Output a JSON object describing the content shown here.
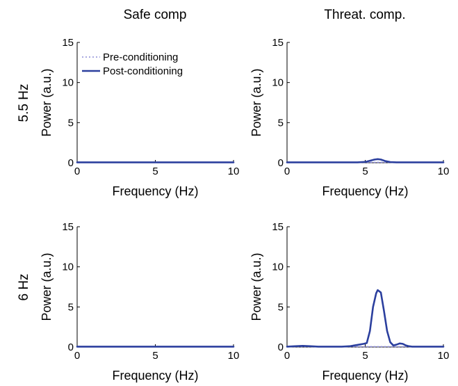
{
  "column_titles": [
    "Safe comp",
    "Threat. comp."
  ],
  "row_labels": [
    "5.5 Hz",
    "6 Hz"
  ],
  "legend": {
    "pre": "Pre-conditioning",
    "post": "Post-conditioning"
  },
  "colors": {
    "pre": "#8c8cd6",
    "post": "#2b3f9e",
    "axis": "#000000"
  },
  "chart_data": [
    {
      "type": "line",
      "row": 0,
      "col": 0,
      "xlabel": "Frequency (Hz)",
      "ylabel": "Power (a.u.)",
      "xlim": [
        0,
        10
      ],
      "ylim": [
        0,
        15
      ],
      "xticks": [
        0,
        5,
        10
      ],
      "yticks": [
        0,
        5,
        10,
        15
      ],
      "grid": false,
      "legend": "top-left",
      "series": [
        {
          "name": "Pre-conditioning",
          "style": "dotted",
          "x": [
            0,
            10
          ],
          "y": [
            0.05,
            0.05
          ]
        },
        {
          "name": "Post-conditioning",
          "style": "solid",
          "x": [
            0,
            10
          ],
          "y": [
            0.05,
            0.05
          ]
        }
      ]
    },
    {
      "type": "line",
      "row": 0,
      "col": 1,
      "xlabel": "Frequency (Hz)",
      "ylabel": "Power (a.u.)",
      "xlim": [
        0,
        10
      ],
      "ylim": [
        0,
        15
      ],
      "xticks": [
        0,
        5,
        10
      ],
      "yticks": [
        0,
        5,
        10,
        15
      ],
      "grid": false,
      "series": [
        {
          "name": "Pre-conditioning",
          "style": "dotted",
          "x": [
            0,
            10
          ],
          "y": [
            0.05,
            0.05
          ]
        },
        {
          "name": "Post-conditioning",
          "style": "solid",
          "x": [
            0,
            4.5,
            5.0,
            5.3,
            5.6,
            5.8,
            6.0,
            6.3,
            6.6,
            7.0,
            10
          ],
          "y": [
            0.05,
            0.05,
            0.1,
            0.25,
            0.4,
            0.45,
            0.4,
            0.2,
            0.08,
            0.05,
            0.05
          ]
        }
      ]
    },
    {
      "type": "line",
      "row": 1,
      "col": 0,
      "xlabel": "Frequency (Hz)",
      "ylabel": "Power (a.u.)",
      "xlim": [
        0,
        10
      ],
      "ylim": [
        0,
        15
      ],
      "xticks": [
        0,
        5,
        10
      ],
      "yticks": [
        0,
        5,
        10,
        15
      ],
      "grid": false,
      "series": [
        {
          "name": "Pre-conditioning",
          "style": "dotted",
          "x": [
            0,
            10
          ],
          "y": [
            0.05,
            0.05
          ]
        },
        {
          "name": "Post-conditioning",
          "style": "solid",
          "x": [
            0,
            10
          ],
          "y": [
            0.05,
            0.05
          ]
        }
      ]
    },
    {
      "type": "line",
      "row": 1,
      "col": 1,
      "xlabel": "Frequency (Hz)",
      "ylabel": "Power (a.u.)",
      "xlim": [
        0,
        10
      ],
      "ylim": [
        0,
        15
      ],
      "xticks": [
        0,
        5,
        10
      ],
      "yticks": [
        0,
        5,
        10,
        15
      ],
      "grid": false,
      "series": [
        {
          "name": "Pre-conditioning",
          "style": "dotted",
          "x": [
            0,
            10
          ],
          "y": [
            0.05,
            0.05
          ]
        },
        {
          "name": "Post-conditioning",
          "style": "solid",
          "x": [
            0,
            0.5,
            1.0,
            1.5,
            2.0,
            2.5,
            3.0,
            3.5,
            4.0,
            4.3,
            4.6,
            4.9,
            5.1,
            5.3,
            5.5,
            5.7,
            5.8,
            6.0,
            6.2,
            6.4,
            6.6,
            6.8,
            7.0,
            7.2,
            7.4,
            7.6,
            7.8,
            8.0,
            8.5,
            10
          ],
          "y": [
            0.05,
            0.1,
            0.15,
            0.1,
            0.05,
            0.05,
            0.05,
            0.05,
            0.1,
            0.2,
            0.3,
            0.4,
            0.5,
            2.0,
            5.0,
            6.7,
            7.1,
            6.8,
            4.5,
            2.0,
            0.6,
            0.2,
            0.3,
            0.45,
            0.4,
            0.2,
            0.1,
            0.05,
            0.05,
            0.05
          ]
        }
      ]
    }
  ]
}
